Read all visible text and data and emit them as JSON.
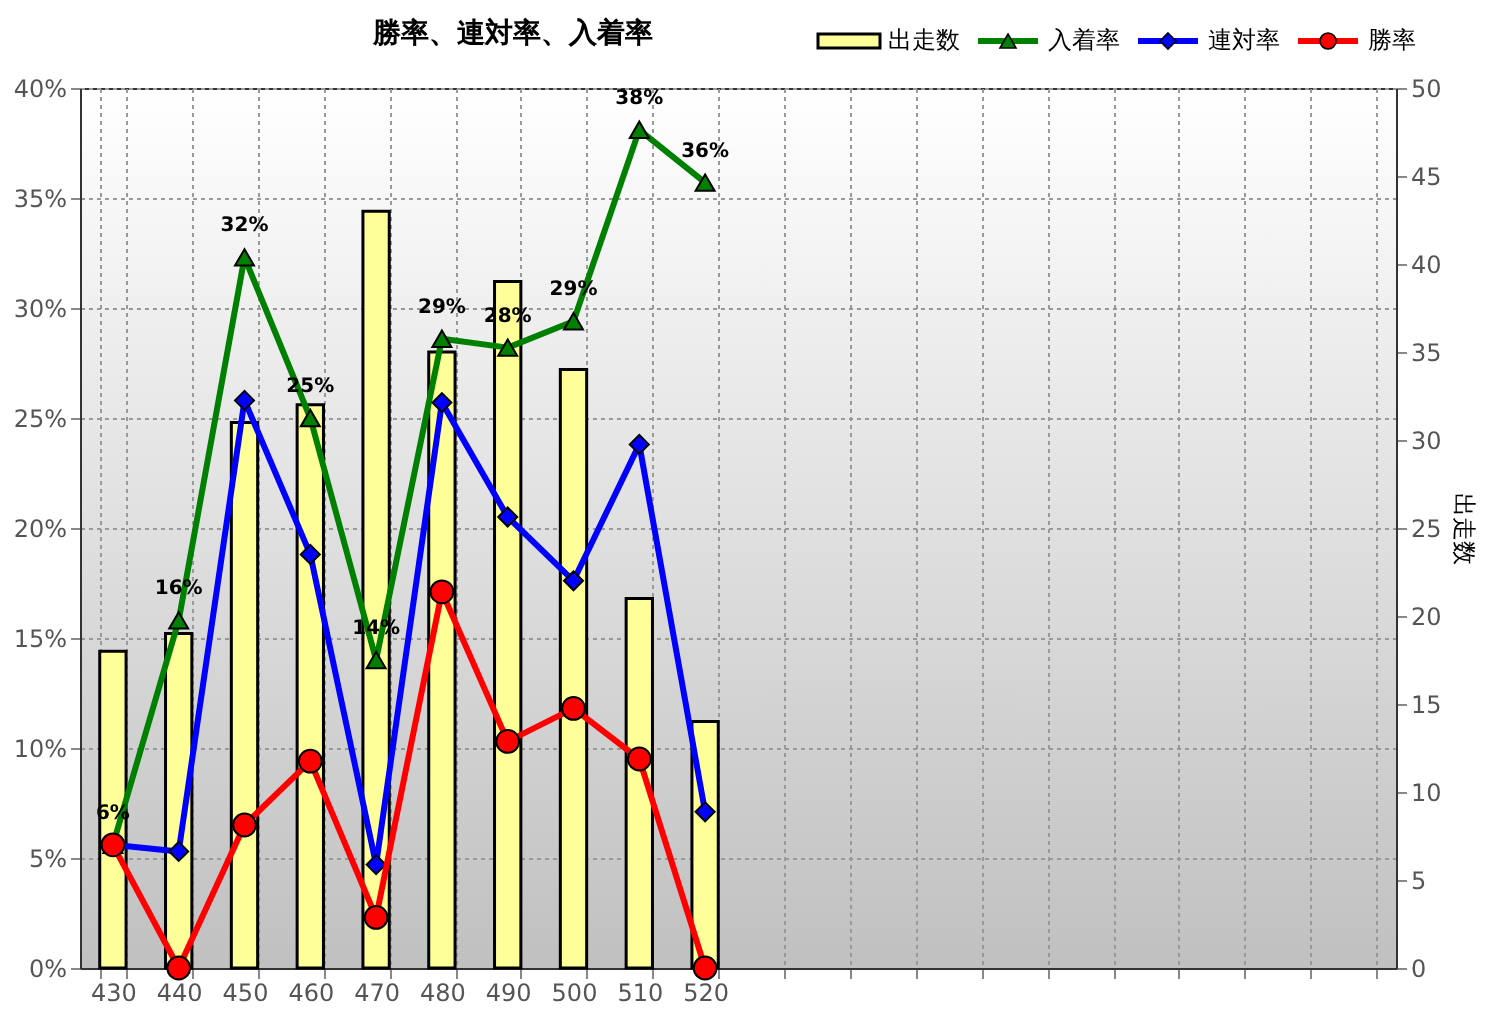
{
  "chart_data": {
    "type": "line",
    "title": "勝率、連対率、入着率",
    "y2label": "出走数",
    "categories": [
      "430",
      "440",
      "450",
      "460",
      "470",
      "480",
      "490",
      "500",
      "510",
      "520",
      null,
      null,
      null,
      null,
      null,
      null,
      null,
      null,
      null,
      null
    ],
    "series": [
      {
        "name": "出走数",
        "type": "bar",
        "axis": "y2",
        "color": "#ffff99",
        "values": [
          18,
          19,
          31,
          32,
          43,
          35,
          39,
          34,
          21,
          14,
          null,
          null,
          null,
          null,
          null,
          null,
          null,
          null,
          null,
          null
        ]
      },
      {
        "name": "入着率",
        "color": "#008000",
        "marker": "triangle",
        "values": [
          5.6,
          15.8,
          32.3,
          25.0,
          14.0,
          28.6,
          28.2,
          29.4,
          38.1,
          35.7,
          null,
          null,
          null,
          null,
          null,
          null,
          null,
          null,
          null,
          null
        ],
        "value_labels": [
          "6%",
          "16%",
          "32%",
          "25%",
          "14%",
          "29%",
          "28%",
          "29%",
          "38%",
          "36%",
          null,
          null,
          null,
          null,
          null,
          null,
          null,
          null,
          null,
          null
        ]
      },
      {
        "name": "連対率",
        "color": "#0000ff",
        "marker": "diamond",
        "values": [
          5.6,
          5.3,
          25.8,
          18.8,
          4.7,
          25.7,
          20.5,
          17.6,
          23.8,
          7.1,
          null,
          null,
          null,
          null,
          null,
          null,
          null,
          null,
          null,
          null
        ]
      },
      {
        "name": "勝率",
        "color": "#ff0000",
        "marker": "circle",
        "values": [
          5.6,
          0,
          6.5,
          9.4,
          2.3,
          17.1,
          10.3,
          11.8,
          9.5,
          0,
          null,
          null,
          null,
          null,
          null,
          null,
          null,
          null,
          null,
          null
        ]
      }
    ],
    "ylim": [
      0,
      40
    ],
    "yticks": [
      {
        "value": 0,
        "label": "0%"
      },
      {
        "value": 5,
        "label": "5%"
      },
      {
        "value": 10,
        "label": "10%"
      },
      {
        "value": 15,
        "label": "15%"
      },
      {
        "value": 20,
        "label": "20%"
      },
      {
        "value": 25,
        "label": "25%"
      },
      {
        "value": 30,
        "label": "30%"
      },
      {
        "value": 35,
        "label": "35%"
      },
      {
        "value": 40,
        "label": "40%"
      }
    ],
    "y2lim": [
      0,
      50
    ],
    "y2ticks": [
      0,
      5,
      10,
      15,
      20,
      25,
      30,
      35,
      40,
      45,
      50
    ],
    "grid": true,
    "legend": "top right",
    "line_style": "solid"
  }
}
